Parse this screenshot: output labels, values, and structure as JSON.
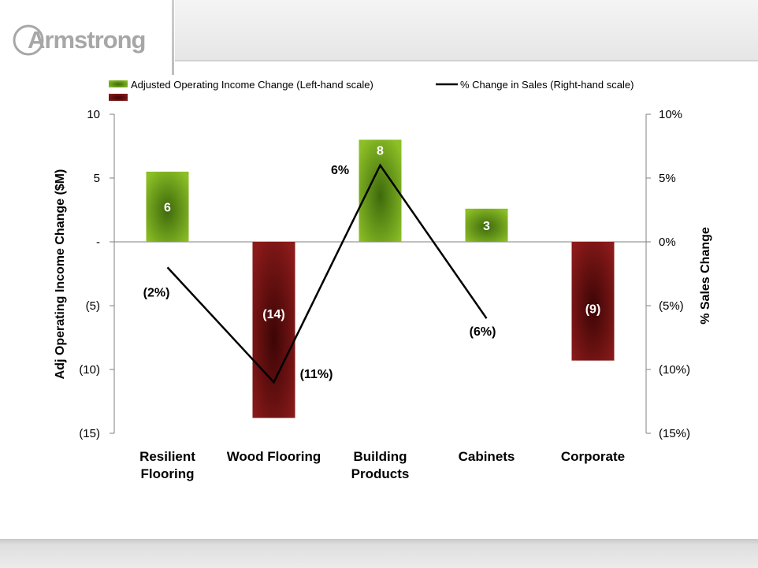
{
  "logo": {
    "text": "Armstrong"
  },
  "chart_data": {
    "type": "bar",
    "categories": [
      [
        "Resilient",
        "Flooring"
      ],
      [
        "Wood Flooring"
      ],
      [
        "Building",
        "Products"
      ],
      [
        "Cabinets"
      ],
      [
        "Corporate"
      ]
    ],
    "series": [
      {
        "name": "Adjusted Operating Income Change (Left-hand scale)",
        "type": "bar",
        "axis": "left",
        "values": [
          5.5,
          -13.8,
          8.0,
          2.6,
          -9.3
        ],
        "labels": [
          "6",
          "(14)",
          "8",
          "3",
          "(9)"
        ]
      },
      {
        "name": "% Change in Sales (Right-hand scale)",
        "type": "line",
        "axis": "right",
        "values": [
          -2,
          -11,
          6,
          -6,
          null
        ],
        "labels": [
          "(2%)",
          "(11%)",
          "6%",
          "(6%)",
          null
        ]
      }
    ],
    "ylabel_left": "Adj Operating Income Change ($M)",
    "ylabel_right": "% Sales Change",
    "ylim_left": [
      -15,
      10
    ],
    "ylim_right": [
      -15,
      10
    ],
    "yticks_left": [
      "10",
      "5",
      "-",
      "(5)",
      "(10)",
      "(15)"
    ],
    "yticks_right": [
      "10%",
      "5%",
      "0%",
      "(5%)",
      "(10%)",
      "(15%)"
    ],
    "legend_position": "top",
    "grid": false,
    "colors": {
      "positive_bar": "#8cbf26",
      "positive_bar_dark": "#3e6a0c",
      "negative_bar": "#8b1a1a",
      "negative_bar_dark": "#3c0505",
      "line": "#000000",
      "axis": "#808080"
    }
  }
}
